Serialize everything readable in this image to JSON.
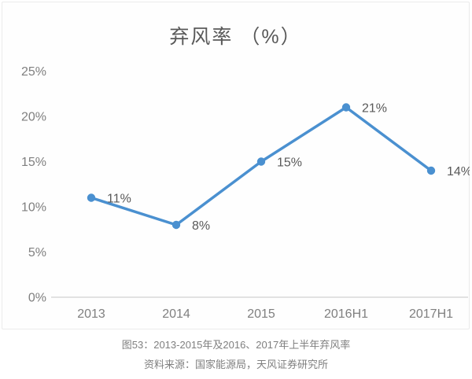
{
  "chart_data": {
    "type": "line",
    "title": "弃风率 （%）",
    "categories": [
      "2013",
      "2014",
      "2015",
      "2016H1",
      "2017H1"
    ],
    "values": [
      11,
      8,
      15,
      21,
      14
    ],
    "data_labels": [
      "11%",
      "8%",
      "15%",
      "21%",
      "14%"
    ],
    "y_tick_labels": [
      "0%",
      "5%",
      "10%",
      "15%",
      "20%",
      "25%"
    ],
    "y_tick_values": [
      0,
      5,
      10,
      15,
      20,
      25
    ],
    "ylim": [
      0,
      25
    ],
    "xlabel": "",
    "ylabel": "",
    "grid": false,
    "legend": "none",
    "colors": {
      "line": "#4a90d0",
      "marker": "#4a90d0",
      "axis_line": "#d9d9d9",
      "title_text": "#595959",
      "tick_text": "#7f7f7f",
      "data_label_text": "#595959"
    }
  },
  "caption": {
    "figure_label": "图53：2013-2015年及2016、2017年上半年弃风率",
    "source": "资料来源：国家能源局，天风证券研究所"
  }
}
